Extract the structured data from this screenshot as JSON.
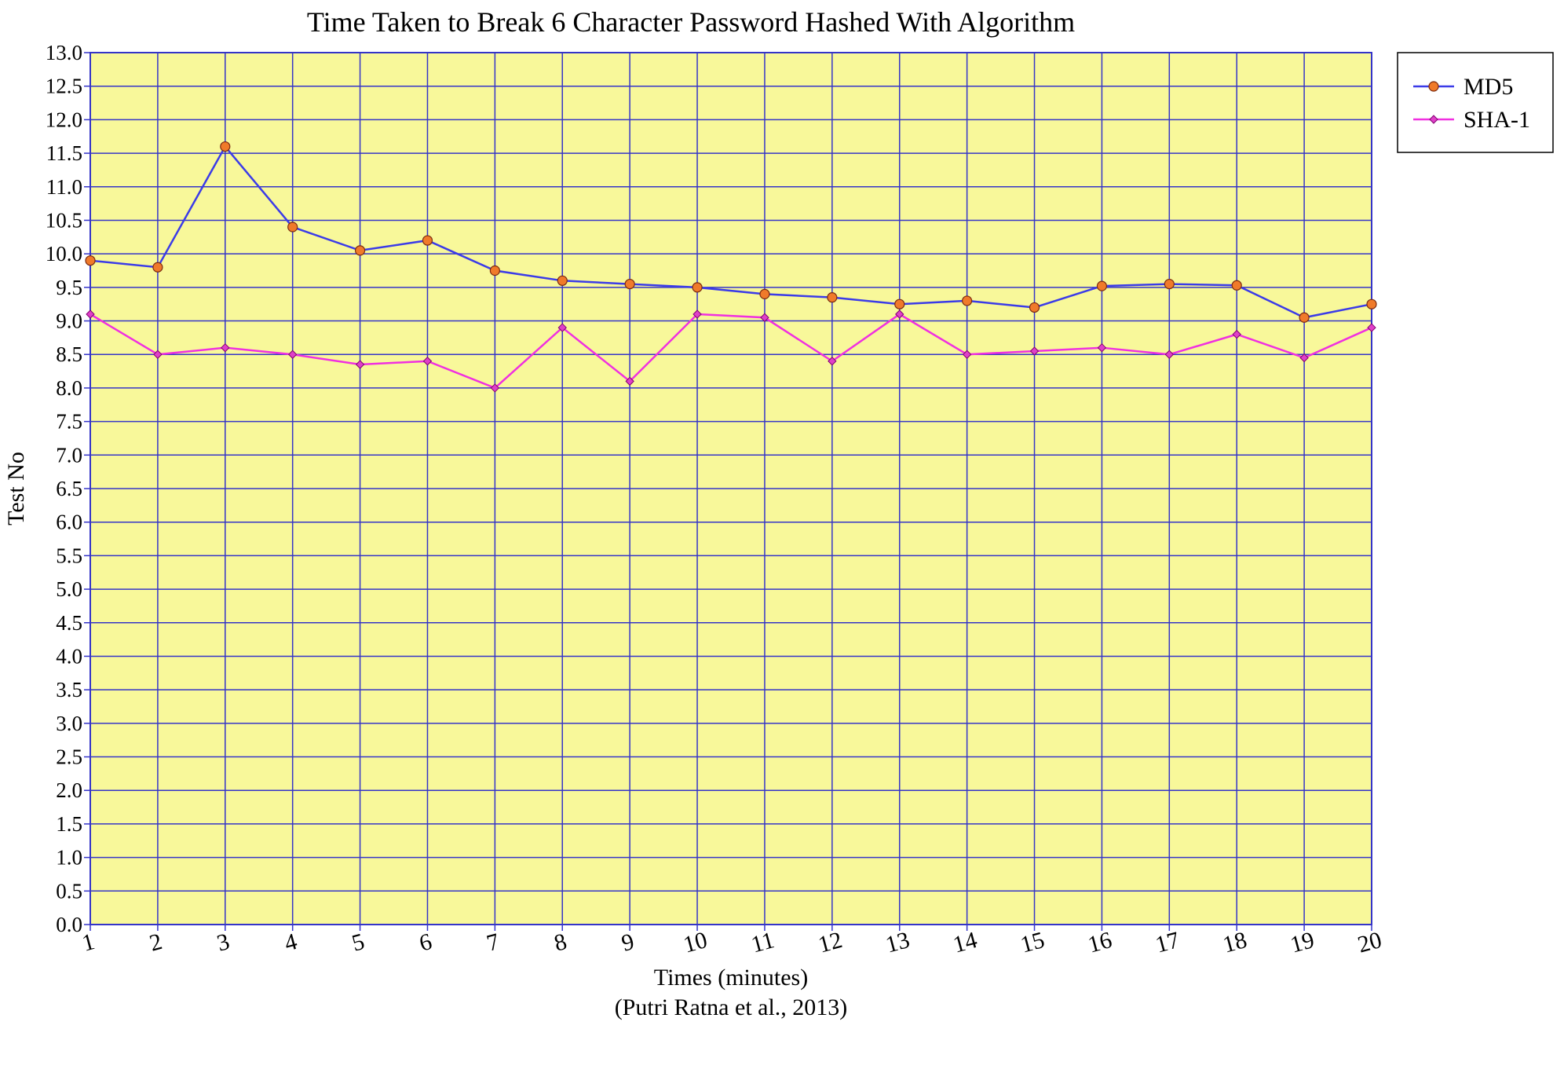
{
  "chart_data": {
    "type": "line",
    "title": "Time Taken to Break 6 Character Password Hashed With Algorithm",
    "xlabel": "Times (minutes)",
    "source": "(Putri Ratna et al., 2013)",
    "ylabel": "Test No",
    "x": [
      1,
      2,
      3,
      4,
      5,
      6,
      7,
      8,
      9,
      10,
      11,
      12,
      13,
      14,
      15,
      16,
      17,
      18,
      19,
      20
    ],
    "ylim": [
      0,
      13
    ],
    "ytick_step": 0.5,
    "grid": true,
    "legend_position": "top-right",
    "background_color": "#f8f89a",
    "grid_color": "#3535c8",
    "series": [
      {
        "name": "MD5",
        "color": "#3b3be8",
        "marker": "circle",
        "marker_color": "#f07a2a",
        "values": [
          9.9,
          9.8,
          11.6,
          10.4,
          10.05,
          10.2,
          9.75,
          9.6,
          9.55,
          9.5,
          9.4,
          9.35,
          9.25,
          9.3,
          9.2,
          9.52,
          9.55,
          9.53,
          9.05,
          9.25
        ]
      },
      {
        "name": "SHA-1",
        "color": "#f030e0",
        "marker": "diamond",
        "marker_color": "#e040c8",
        "values": [
          9.1,
          8.5,
          8.6,
          8.5,
          8.35,
          8.4,
          8.0,
          8.9,
          8.1,
          9.1,
          9.05,
          8.4,
          9.1,
          8.5,
          8.55,
          8.6,
          8.5,
          8.8,
          8.45,
          8.9
        ]
      }
    ]
  }
}
